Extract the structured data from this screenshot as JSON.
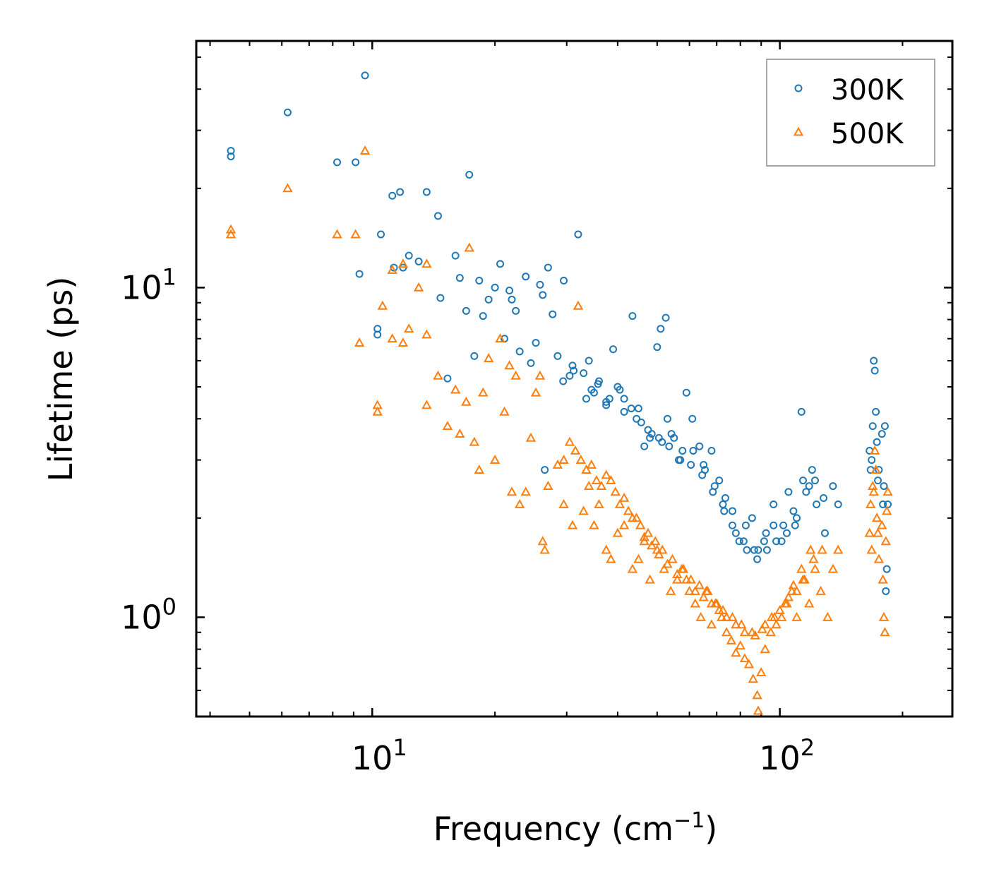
{
  "chart_data": {
    "type": "scatter",
    "xscale": "log",
    "yscale": "log",
    "xlabel": "Frequency (cm",
    "xlabel_sup": "−1",
    "xlabel_end": ")",
    "ylabel": "Lifetime (ps)",
    "xlim": [
      3.7,
      265
    ],
    "ylim": [
      0.5,
      56
    ],
    "x_ticks": [
      {
        "value": 10,
        "base": "10",
        "exp": "1"
      },
      {
        "value": 100,
        "base": "10",
        "exp": "2"
      }
    ],
    "y_ticks": [
      {
        "value": 1,
        "base": "10",
        "exp": "0"
      },
      {
        "value": 10,
        "base": "10",
        "exp": "1"
      }
    ],
    "legend_position": "top-right",
    "series": [
      {
        "name": "300K",
        "marker": "circle",
        "color": "#1f77b4",
        "points": [
          [
            4.5,
            26
          ],
          [
            4.5,
            25
          ],
          [
            6.2,
            34
          ],
          [
            8.2,
            24
          ],
          [
            9.1,
            24
          ],
          [
            9.6,
            44
          ],
          [
            9.3,
            11
          ],
          [
            10.3,
            7.5
          ],
          [
            10.3,
            7.2
          ],
          [
            10.5,
            14.5
          ],
          [
            11.2,
            19
          ],
          [
            11.7,
            19.5
          ],
          [
            11.3,
            11.5
          ],
          [
            11.9,
            11.5
          ],
          [
            12.3,
            12.5
          ],
          [
            13.0,
            12
          ],
          [
            13.6,
            19.5
          ],
          [
            14.5,
            16.5
          ],
          [
            14.7,
            9.3
          ],
          [
            15.3,
            5.3
          ],
          [
            16.0,
            12.5
          ],
          [
            16.4,
            10.7
          ],
          [
            17.0,
            8.5
          ],
          [
            17.3,
            22
          ],
          [
            17.8,
            6.2
          ],
          [
            18.3,
            10.5
          ],
          [
            18.7,
            8.2
          ],
          [
            19.3,
            9.2
          ],
          [
            20.0,
            10
          ],
          [
            20.6,
            11.8
          ],
          [
            21.1,
            7
          ],
          [
            21.7,
            9.8
          ],
          [
            22.0,
            9.2
          ],
          [
            22.5,
            8.5
          ],
          [
            23.0,
            6.4
          ],
          [
            23.8,
            10.8
          ],
          [
            24.5,
            5.9
          ],
          [
            25.2,
            6.8
          ],
          [
            25.8,
            10.2
          ],
          [
            26.2,
            9.5
          ],
          [
            26.5,
            2.8
          ],
          [
            27.0,
            11.5
          ],
          [
            27.7,
            8.3
          ],
          [
            28.5,
            6.2
          ],
          [
            29.5,
            10.5
          ],
          [
            31.0,
            5.8
          ],
          [
            32.0,
            14.5
          ],
          [
            33.0,
            5.5
          ],
          [
            34.0,
            6.0
          ],
          [
            35.0,
            4.8
          ],
          [
            36.0,
            5.2
          ],
          [
            37.5,
            4.5
          ],
          [
            39.0,
            6.5
          ],
          [
            40.0,
            5.0
          ],
          [
            41.5,
            4.2
          ],
          [
            43.5,
            8.2
          ],
          [
            45.0,
            4.3
          ],
          [
            46.5,
            3.3
          ],
          [
            48.0,
            3.5
          ],
          [
            50.0,
            6.6
          ],
          [
            51.0,
            7.5
          ],
          [
            52.5,
            8.1
          ],
          [
            53.0,
            4.0
          ],
          [
            55.0,
            3.5
          ],
          [
            57.0,
            3.0
          ],
          [
            59.0,
            4.8
          ],
          [
            61.0,
            4.0
          ],
          [
            63.5,
            3.3
          ],
          [
            65.5,
            2.8
          ],
          [
            68.0,
            3.2
          ],
          [
            71.0,
            2.6
          ],
          [
            73.5,
            2.3
          ],
          [
            76.5,
            2.1
          ],
          [
            79.5,
            1.7
          ],
          [
            82.5,
            1.9
          ],
          [
            85.5,
            2.0
          ],
          [
            88.5,
            1.6
          ],
          [
            92.5,
            1.8
          ],
          [
            96.5,
            2.2
          ],
          [
            101,
            1.7
          ],
          [
            105,
            2.4
          ],
          [
            109,
            1.9
          ],
          [
            113,
            4.2
          ],
          [
            118,
            2.5
          ],
          [
            123,
            2.2
          ],
          [
            129,
            1.8
          ],
          [
            135,
            2.5
          ],
          [
            139,
            2.2
          ],
          [
            166,
            3.2
          ],
          [
            167,
            2.8
          ],
          [
            168,
            3.0
          ],
          [
            169,
            3.8
          ],
          [
            170,
            6.0
          ],
          [
            171,
            5.6
          ],
          [
            172,
            4.2
          ],
          [
            173,
            3.4
          ],
          [
            174,
            2.6
          ],
          [
            175,
            2.8
          ],
          [
            178,
            3.6
          ],
          [
            179,
            2.2
          ],
          [
            180,
            2.5
          ],
          [
            181,
            3.8
          ],
          [
            182,
            1.2
          ],
          [
            183,
            1.4
          ],
          [
            184,
            2.2
          ],
          [
            29.4,
            5.2
          ],
          [
            31.2,
            5.6
          ],
          [
            33.5,
            4.6
          ],
          [
            35.8,
            5.1
          ],
          [
            38.2,
            4.6
          ],
          [
            40.5,
            4.9
          ],
          [
            43.2,
            4.3
          ],
          [
            45.7,
            3.9
          ],
          [
            48.5,
            3.6
          ],
          [
            51.4,
            3.4
          ],
          [
            54.2,
            3.6
          ],
          [
            57.7,
            3.2
          ],
          [
            61.3,
            3.2
          ],
          [
            65.0,
            2.9
          ],
          [
            69.2,
            2.5
          ],
          [
            73.0,
            2.1
          ],
          [
            78.0,
            1.8
          ],
          [
            83.0,
            1.6
          ],
          [
            88.0,
            1.5
          ],
          [
            93.0,
            1.6
          ],
          [
            98.0,
            1.7
          ],
          [
            104,
            1.8
          ],
          [
            110,
            2.0
          ],
          [
            116,
            2.4
          ],
          [
            122,
            2.6
          ],
          [
            128,
            2.3
          ],
          [
            30.5,
            5.4
          ],
          [
            34.5,
            4.9
          ],
          [
            37.5,
            4.4
          ],
          [
            41.5,
            4.6
          ],
          [
            44.5,
            4.0
          ],
          [
            47.5,
            3.7
          ],
          [
            50.5,
            3.5
          ],
          [
            53.5,
            3.3
          ],
          [
            56.5,
            3.0
          ],
          [
            60.5,
            2.9
          ],
          [
            64.5,
            2.7
          ],
          [
            68.5,
            2.4
          ],
          [
            72.5,
            2.2
          ],
          [
            76.5,
            1.9
          ],
          [
            81.5,
            1.7
          ],
          [
            86.5,
            1.6
          ],
          [
            91.5,
            1.7
          ],
          [
            96.5,
            1.9
          ],
          [
            102,
            1.9
          ],
          [
            108,
            2.1
          ],
          [
            114,
            2.6
          ],
          [
            120,
            2.8
          ]
        ]
      },
      {
        "name": "500K",
        "marker": "triangle",
        "color": "#ff7f0e",
        "points": [
          [
            4.5,
            15
          ],
          [
            4.5,
            14.5
          ],
          [
            6.2,
            20
          ],
          [
            8.2,
            14.5
          ],
          [
            9.1,
            14.5
          ],
          [
            9.6,
            26
          ],
          [
            9.3,
            6.8
          ],
          [
            10.3,
            4.4
          ],
          [
            10.3,
            4.2
          ],
          [
            10.6,
            8.8
          ],
          [
            11.2,
            11.3
          ],
          [
            11.2,
            7
          ],
          [
            11.9,
            11.8
          ],
          [
            11.9,
            6.8
          ],
          [
            12.3,
            7.5
          ],
          [
            13.0,
            10
          ],
          [
            13.6,
            11.8
          ],
          [
            13.6,
            7.2
          ],
          [
            13.6,
            4.4
          ],
          [
            14.5,
            5.4
          ],
          [
            15.3,
            3.8
          ],
          [
            16.0,
            4.9
          ],
          [
            16.4,
            3.6
          ],
          [
            17.0,
            4.5
          ],
          [
            17.3,
            13.2
          ],
          [
            17.8,
            3.4
          ],
          [
            18.3,
            2.8
          ],
          [
            18.7,
            4.8
          ],
          [
            19.3,
            6.1
          ],
          [
            20.0,
            3.0
          ],
          [
            20.6,
            7.0
          ],
          [
            21.1,
            4.2
          ],
          [
            21.7,
            5.8
          ],
          [
            22.0,
            2.4
          ],
          [
            22.5,
            5.4
          ],
          [
            23.0,
            2.2
          ],
          [
            23.8,
            2.4
          ],
          [
            24.5,
            3.5
          ],
          [
            25.2,
            4.8
          ],
          [
            25.8,
            5.4
          ],
          [
            26.2,
            1.7
          ],
          [
            26.5,
            1.6
          ],
          [
            27.0,
            2.5
          ],
          [
            28.5,
            2.9
          ],
          [
            29.5,
            2.2
          ],
          [
            31.0,
            1.9
          ],
          [
            32.0,
            8.8
          ],
          [
            33.0,
            2.1
          ],
          [
            34.0,
            2.5
          ],
          [
            35.0,
            1.9
          ],
          [
            36.0,
            2.2
          ],
          [
            37.5,
            1.6
          ],
          [
            38.5,
            1.5
          ],
          [
            40.0,
            1.8
          ],
          [
            41.5,
            1.9
          ],
          [
            43.5,
            1.4
          ],
          [
            45.0,
            1.5
          ],
          [
            46.5,
            1.7
          ],
          [
            48.0,
            1.3
          ],
          [
            50.0,
            1.6
          ],
          [
            52.0,
            1.4
          ],
          [
            54.0,
            1.2
          ],
          [
            56.0,
            1.3
          ],
          [
            58.0,
            1.4
          ],
          [
            60.0,
            1.2
          ],
          [
            62.0,
            1.1
          ],
          [
            64.0,
            1.0
          ],
          [
            66.0,
            1.2
          ],
          [
            68.0,
            0.95
          ],
          [
            70.0,
            1.1
          ],
          [
            72.0,
            1.0
          ],
          [
            74.0,
            0.9
          ],
          [
            76.0,
            0.85
          ],
          [
            78.0,
            0.78
          ],
          [
            80.0,
            0.82
          ],
          [
            82.0,
            0.75
          ],
          [
            84.0,
            0.72
          ],
          [
            86.0,
            0.65
          ],
          [
            88.0,
            0.58
          ],
          [
            88.5,
            0.52
          ],
          [
            90.0,
            0.68
          ],
          [
            92.0,
            0.8
          ],
          [
            95.0,
            0.9
          ],
          [
            98.0,
            0.95
          ],
          [
            101,
            1.0
          ],
          [
            104,
            1.1
          ],
          [
            107,
            1.2
          ],
          [
            110,
            1.0
          ],
          [
            114,
            1.3
          ],
          [
            118,
            1.1
          ],
          [
            122,
            1.4
          ],
          [
            126,
            1.2
          ],
          [
            131,
            1.0
          ],
          [
            135,
            1.4
          ],
          [
            139,
            1.6
          ],
          [
            166,
            1.8
          ],
          [
            167,
            2.2
          ],
          [
            168,
            1.6
          ],
          [
            169,
            2.5
          ],
          [
            170,
            2.4
          ],
          [
            171,
            3.2
          ],
          [
            172,
            2.8
          ],
          [
            173,
            2.0
          ],
          [
            174,
            1.8
          ],
          [
            175,
            1.5
          ],
          [
            178,
            1.9
          ],
          [
            179,
            1.3
          ],
          [
            180,
            1.0
          ],
          [
            181,
            0.9
          ],
          [
            182,
            1.7
          ],
          [
            183,
            2.1
          ],
          [
            184,
            2.4
          ],
          [
            29.5,
            3.0
          ],
          [
            31.5,
            3.2
          ],
          [
            33.5,
            2.8
          ],
          [
            35.5,
            2.6
          ],
          [
            37.5,
            2.7
          ],
          [
            39.5,
            2.4
          ],
          [
            41.5,
            2.3
          ],
          [
            43.5,
            2.0
          ],
          [
            45.5,
            1.9
          ],
          [
            47.5,
            1.8
          ],
          [
            49.5,
            1.7
          ],
          [
            51.5,
            1.6
          ],
          [
            54.5,
            1.5
          ],
          [
            57.5,
            1.4
          ],
          [
            60.5,
            1.3
          ],
          [
            63.5,
            1.25
          ],
          [
            66.5,
            1.2
          ],
          [
            69.5,
            1.1
          ],
          [
            72.5,
            1.05
          ],
          [
            76.5,
            1.0
          ],
          [
            80.5,
            0.95
          ],
          [
            85.5,
            0.9
          ],
          [
            90.5,
            0.92
          ],
          [
            95.5,
            1.0
          ],
          [
            100,
            1.05
          ],
          [
            105,
            1.15
          ],
          [
            110,
            1.2
          ],
          [
            115,
            1.3
          ],
          [
            121,
            1.5
          ],
          [
            127,
            1.6
          ],
          [
            30.5,
            3.4
          ],
          [
            32.5,
            3.0
          ],
          [
            34.5,
            2.9
          ],
          [
            36.5,
            2.5
          ],
          [
            38.5,
            2.6
          ],
          [
            40.5,
            2.2
          ],
          [
            42.5,
            2.1
          ],
          [
            44.5,
            2.0
          ],
          [
            46.5,
            1.75
          ],
          [
            48.5,
            1.65
          ],
          [
            50.5,
            1.55
          ],
          [
            53.0,
            1.45
          ],
          [
            56.0,
            1.35
          ],
          [
            59.0,
            1.3
          ],
          [
            62.0,
            1.2
          ],
          [
            65.0,
            1.15
          ],
          [
            68.0,
            1.1
          ],
          [
            71.0,
            1.05
          ],
          [
            74.0,
            1.0
          ],
          [
            78.0,
            0.95
          ],
          [
            82.0,
            0.9
          ],
          [
            87.0,
            0.88
          ],
          [
            92.0,
            0.95
          ],
          [
            97.0,
            1.0
          ],
          [
            103,
            1.1
          ],
          [
            108,
            1.25
          ],
          [
            113,
            1.4
          ],
          [
            119,
            1.6
          ]
        ]
      }
    ]
  }
}
